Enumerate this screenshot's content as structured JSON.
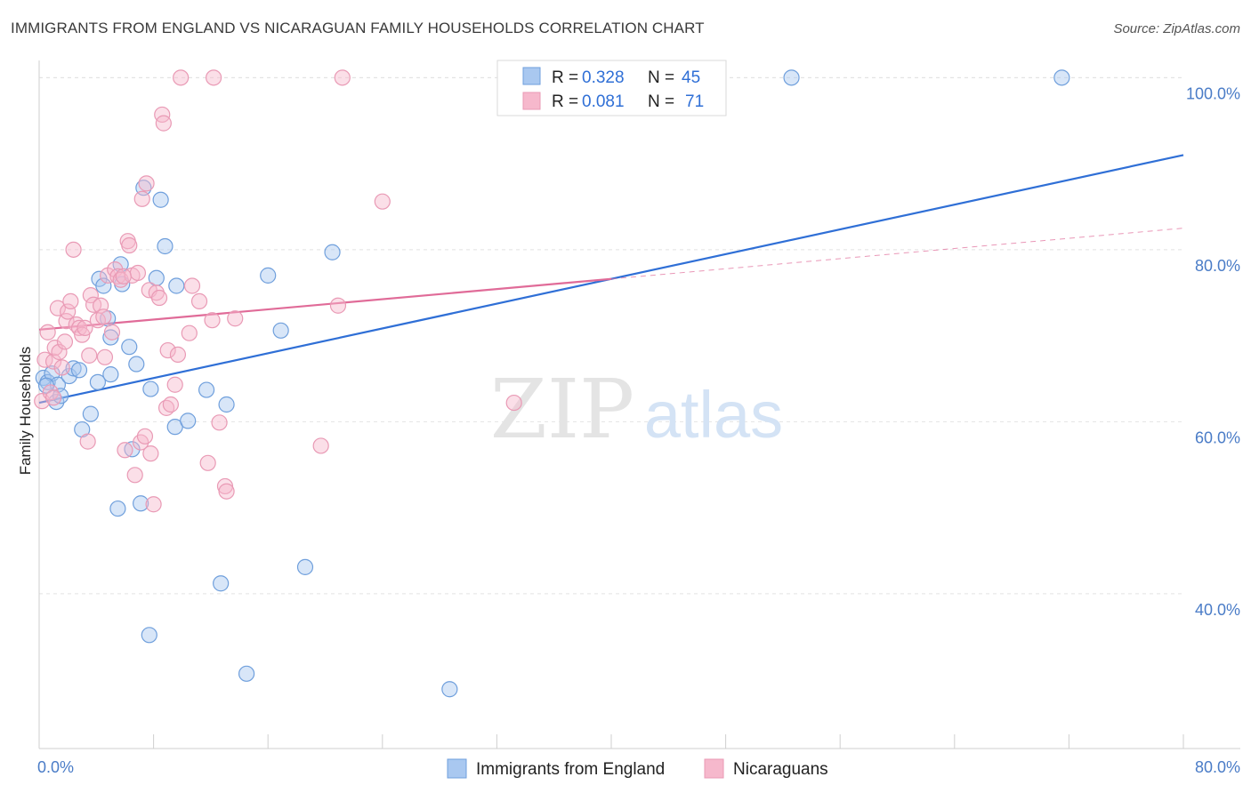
{
  "title": "IMMIGRANTS FROM ENGLAND VS NICARAGUAN FAMILY HOUSEHOLDS CORRELATION CHART",
  "source": "Source: ZipAtlas.com",
  "watermark": {
    "zip": "ZIP",
    "atlas": "atlas"
  },
  "colors": {
    "blue_fill": "#a9c8f0",
    "blue_stroke": "#6f9fdc",
    "blue_line": "#2f6fd6",
    "pink_fill": "#f6b8cc",
    "pink_stroke": "#e99ab5",
    "pink_line": "#e06b98",
    "grid": "#e2e2e2",
    "tick_label": "#4a7cc7"
  },
  "legend": {
    "rows": [
      {
        "r_label": "R =",
        "r_value": "0.328",
        "n_label": "N =",
        "n_value": "45"
      },
      {
        "r_label": "R =",
        "r_value": "0.081",
        "n_label": "N =",
        "n_value": "71"
      }
    ]
  },
  "chart_data": {
    "type": "scatter",
    "xlabel": "",
    "ylabel": "Family Households",
    "xlim": [
      0,
      80
    ],
    "ylim": [
      22,
      102
    ],
    "x_tick_labels": [
      "0.0%",
      "80.0%"
    ],
    "y_ticks": [
      40,
      60,
      80,
      100
    ],
    "y_tick_labels": [
      "40.0%",
      "60.0%",
      "80.0%",
      "100.0%"
    ],
    "grid": true,
    "legend_position": "top-center",
    "series": [
      {
        "name": "Immigrants from England",
        "color": "#6f9fdc",
        "trend": {
          "x0": 0,
          "y0": 62.2,
          "x1": 80,
          "y1": 91.0,
          "dashed_from": null
        },
        "points": [
          [
            0.3,
            65.1
          ],
          [
            0.6,
            64.6
          ],
          [
            0.9,
            65.6
          ],
          [
            1.2,
            62.3
          ],
          [
            1.3,
            64.3
          ],
          [
            1.5,
            63.0
          ],
          [
            2.1,
            65.3
          ],
          [
            2.4,
            66.2
          ],
          [
            2.8,
            66.0
          ],
          [
            3.0,
            59.1
          ],
          [
            3.6,
            60.9
          ],
          [
            4.1,
            64.6
          ],
          [
            4.2,
            76.6
          ],
          [
            4.5,
            75.8
          ],
          [
            4.8,
            72.0
          ],
          [
            5.0,
            69.8
          ],
          [
            5.0,
            65.5
          ],
          [
            5.5,
            49.9
          ],
          [
            5.7,
            78.3
          ],
          [
            5.8,
            76.0
          ],
          [
            6.3,
            68.7
          ],
          [
            6.5,
            56.8
          ],
          [
            6.8,
            66.7
          ],
          [
            7.1,
            50.5
          ],
          [
            7.3,
            87.2
          ],
          [
            7.7,
            35.2
          ],
          [
            7.8,
            63.8
          ],
          [
            8.2,
            76.7
          ],
          [
            8.5,
            85.8
          ],
          [
            8.8,
            80.4
          ],
          [
            9.5,
            59.4
          ],
          [
            9.6,
            75.8
          ],
          [
            10.4,
            60.1
          ],
          [
            11.7,
            63.7
          ],
          [
            12.7,
            41.2
          ],
          [
            13.1,
            62.0
          ],
          [
            14.5,
            30.7
          ],
          [
            16.0,
            77.0
          ],
          [
            16.9,
            70.6
          ],
          [
            18.6,
            43.1
          ],
          [
            20.5,
            79.7
          ],
          [
            28.7,
            28.9
          ],
          [
            52.6,
            100.0
          ],
          [
            71.5,
            100.0
          ],
          [
            0.5,
            64.2
          ]
        ]
      },
      {
        "name": "Nicaraguans",
        "color": "#e99ab5",
        "trend": {
          "x0": 0,
          "y0": 70.7,
          "x1": 80,
          "y1": 82.5,
          "dashed_from": 40
        },
        "points": [
          [
            0.2,
            62.4
          ],
          [
            0.4,
            67.2
          ],
          [
            0.6,
            70.4
          ],
          [
            0.8,
            63.4
          ],
          [
            1.0,
            67.0
          ],
          [
            1.1,
            68.6
          ],
          [
            1.3,
            73.2
          ],
          [
            1.4,
            68.1
          ],
          [
            1.6,
            66.3
          ],
          [
            1.8,
            69.3
          ],
          [
            1.9,
            71.7
          ],
          [
            2.0,
            72.8
          ],
          [
            2.4,
            80.0
          ],
          [
            2.6,
            71.3
          ],
          [
            2.8,
            70.9
          ],
          [
            3.0,
            70.1
          ],
          [
            3.2,
            70.9
          ],
          [
            3.4,
            57.7
          ],
          [
            3.5,
            67.7
          ],
          [
            3.6,
            74.7
          ],
          [
            3.8,
            73.6
          ],
          [
            4.1,
            71.8
          ],
          [
            4.3,
            73.5
          ],
          [
            4.5,
            72.2
          ],
          [
            4.8,
            77.0
          ],
          [
            5.1,
            70.4
          ],
          [
            5.3,
            77.7
          ],
          [
            5.5,
            76.9
          ],
          [
            5.7,
            76.5
          ],
          [
            6.0,
            56.7
          ],
          [
            6.2,
            81.0
          ],
          [
            6.3,
            80.5
          ],
          [
            6.5,
            77.0
          ],
          [
            6.7,
            53.8
          ],
          [
            6.9,
            77.3
          ],
          [
            7.1,
            57.6
          ],
          [
            7.2,
            85.9
          ],
          [
            7.4,
            58.3
          ],
          [
            7.5,
            87.7
          ],
          [
            7.7,
            75.3
          ],
          [
            7.8,
            56.3
          ],
          [
            8.0,
            50.4
          ],
          [
            8.2,
            75.0
          ],
          [
            8.4,
            74.4
          ],
          [
            8.6,
            95.7
          ],
          [
            8.7,
            94.7
          ],
          [
            8.9,
            61.6
          ],
          [
            9.0,
            68.3
          ],
          [
            9.2,
            62.0
          ],
          [
            9.5,
            64.3
          ],
          [
            9.7,
            67.8
          ],
          [
            9.9,
            100.0
          ],
          [
            10.5,
            70.3
          ],
          [
            10.7,
            75.8
          ],
          [
            11.2,
            74.0
          ],
          [
            11.8,
            55.2
          ],
          [
            12.1,
            71.8
          ],
          [
            12.2,
            100.0
          ],
          [
            12.6,
            59.9
          ],
          [
            13.0,
            52.5
          ],
          [
            13.1,
            51.9
          ],
          [
            13.7,
            72.0
          ],
          [
            19.7,
            57.2
          ],
          [
            20.9,
            73.5
          ],
          [
            21.2,
            100.0
          ],
          [
            24.0,
            85.6
          ],
          [
            33.2,
            62.2
          ],
          [
            5.9,
            76.9
          ],
          [
            2.2,
            74.0
          ],
          [
            1.0,
            62.8
          ],
          [
            4.6,
            67.5
          ]
        ]
      }
    ]
  }
}
